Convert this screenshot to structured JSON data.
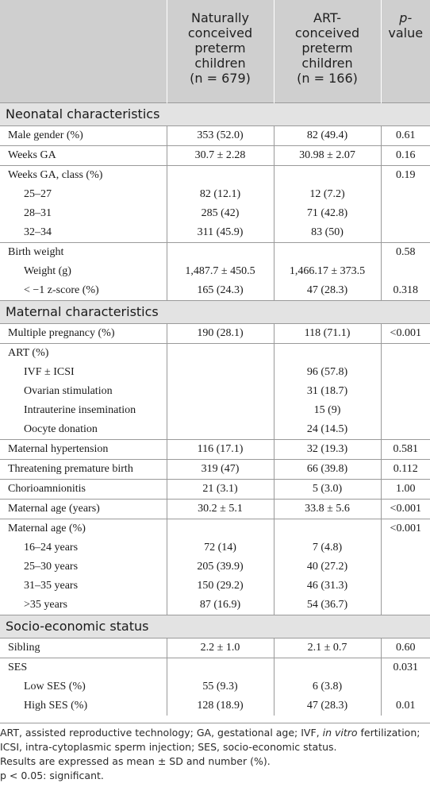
{
  "header": {
    "col1": "",
    "col2_lines": [
      "Naturally",
      "conceived",
      "preterm",
      "children"
    ],
    "col2_n": "(n = 679)",
    "col3_lines": [
      "ART-",
      "conceived",
      "preterm",
      "children"
    ],
    "col3_n": "(n = 166)",
    "col4_lines": [
      "p-",
      "value"
    ]
  },
  "sections": {
    "neonatal": "Neonatal characteristics",
    "maternal": "Maternal characteristics",
    "socio": "Socio-economic status"
  },
  "rows": {
    "male": {
      "label": "Male gender (%)",
      "nat": "353 (52.0)",
      "art": "82 (49.4)",
      "p": "0.61"
    },
    "weeks": {
      "label": "Weeks GA",
      "nat": "30.7 ± 2.28",
      "art": "30.98 ± 2.07",
      "p": "0.16"
    },
    "weeks_class": {
      "label": "Weeks GA, class (%)",
      "nat": "",
      "art": "",
      "p": "0.19"
    },
    "ga_25": {
      "label": "25–27",
      "nat": "82 (12.1)",
      "art": "12 (7.2)",
      "p": ""
    },
    "ga_28": {
      "label": "28–31",
      "nat": "285 (42)",
      "art": "71 (42.8)",
      "p": ""
    },
    "ga_32": {
      "label": "32–34",
      "nat": "311 (45.9)",
      "art": "83 (50)",
      "p": ""
    },
    "bw": {
      "label": "Birth weight",
      "nat": "",
      "art": "",
      "p": "0.58"
    },
    "bw_g": {
      "label": "Weight (g)",
      "nat": "1,487.7 ± 450.5",
      "art": "1,466.17 ± 373.5",
      "p": ""
    },
    "bw_z": {
      "label": "< −1 z-score (%)",
      "nat": "165 (24.3)",
      "art": "47 (28.3)",
      "p": "0.318"
    },
    "multi": {
      "label": "Multiple pregnancy (%)",
      "nat": "190 (28.1)",
      "art": "118 (71.1)",
      "p": "<0.001"
    },
    "art": {
      "label": "ART (%)",
      "nat": "",
      "art": "",
      "p": ""
    },
    "ivf": {
      "label": "IVF ± ICSI",
      "nat": "",
      "art": "96 (57.8)",
      "p": ""
    },
    "ovar": {
      "label": "Ovarian stimulation",
      "nat": "",
      "art": "31 (18.7)",
      "p": ""
    },
    "intra": {
      "label": "Intrauterine insemination",
      "nat": "",
      "art": "15 (9)",
      "p": ""
    },
    "oocyte": {
      "label": "Oocyte donation",
      "nat": "",
      "art": "24 (14.5)",
      "p": ""
    },
    "hyper": {
      "label": "Maternal hypertension",
      "nat": "116 (17.1)",
      "art": "32 (19.3)",
      "p": "0.581"
    },
    "threat": {
      "label": "Threatening premature birth",
      "nat": "319 (47)",
      "art": "66 (39.8)",
      "p": "0.112"
    },
    "chorio": {
      "label": "Chorioamnionitis",
      "nat": "21 (3.1)",
      "art": "5 (3.0)",
      "p": "1.00"
    },
    "mage": {
      "label": "Maternal age (years)",
      "nat": "30.2 ± 5.1",
      "art": "33.8 ± 5.6",
      "p": "<0.001"
    },
    "mage_pct": {
      "label": "Maternal age (%)",
      "nat": "",
      "art": "",
      "p": "<0.001"
    },
    "m16": {
      "label": "16–24 years",
      "nat": "72 (14)",
      "art": "7 (4.8)",
      "p": ""
    },
    "m25": {
      "label": "25–30 years",
      "nat": "205 (39.9)",
      "art": "40 (27.2)",
      "p": ""
    },
    "m31": {
      "label": "31–35 years",
      "nat": "150 (29.2)",
      "art": "46 (31.3)",
      "p": ""
    },
    "m35": {
      "label": ">35 years",
      "nat": "87 (16.9)",
      "art": "54 (36.7)",
      "p": ""
    },
    "sib": {
      "label": "Sibling",
      "nat": "2.2 ± 1.0",
      "art": "2.1 ± 0.7",
      "p": "0.60"
    },
    "ses": {
      "label": "SES",
      "nat": "",
      "art": "",
      "p": "0.031"
    },
    "low": {
      "label": "Low SES (%)",
      "nat": "55 (9.3)",
      "art": "6 (3.8)",
      "p": ""
    },
    "high": {
      "label": "High SES (%)",
      "nat": "128 (18.9)",
      "art": "47 (28.3)",
      "p": "0.01"
    }
  },
  "footnote": {
    "line1a": "ART, assisted reproductive technology; GA, gestational age; IVF, ",
    "line1_italic": "in vitro",
    "line1b": " fertilization; ICSI, intra-cytoplasmic sperm injection; SES, socio-economic status.",
    "line2": "Results are expressed as mean ± SD and number (%).",
    "line3": "p < 0.05: significant."
  }
}
